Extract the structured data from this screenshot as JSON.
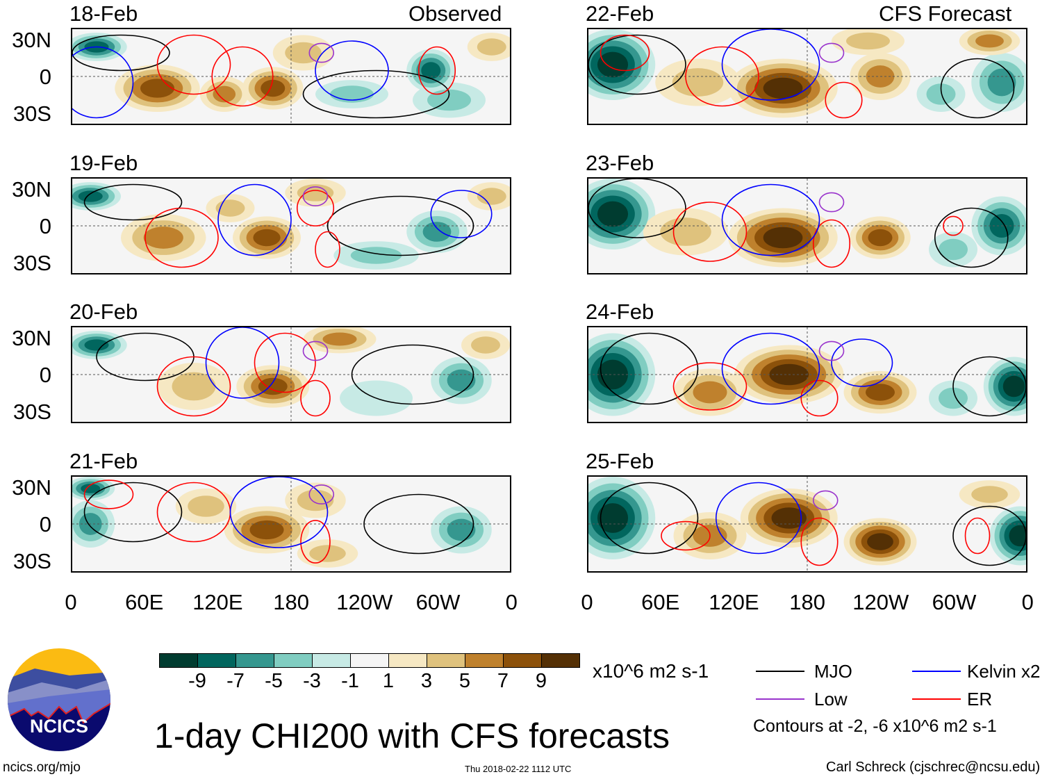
{
  "headers": {
    "observed": "Observed",
    "forecast": "CFS Forecast"
  },
  "lat_labels": [
    "30N",
    "0",
    "30S"
  ],
  "lon_labels": [
    "0",
    "60E",
    "120E",
    "180",
    "120W",
    "60W",
    "0"
  ],
  "colorbar": {
    "colors": [
      "#003c30",
      "#01665e",
      "#35978f",
      "#80cdc1",
      "#c7eae5",
      "#f5f5f5",
      "#f6e8c3",
      "#dfc27d",
      "#bf812d",
      "#8c510a",
      "#543005"
    ],
    "labels": [
      "-9",
      "-7",
      "-5",
      "-3",
      "-1",
      "1",
      "3",
      "5",
      "7",
      "9"
    ],
    "units": "x10^6 m2 s-1"
  },
  "legend": {
    "items": [
      {
        "label": "MJO",
        "color": "#000000"
      },
      {
        "label": "Kelvin x2",
        "color": "#0000ff"
      },
      {
        "label": "Low",
        "color": "#9933cc"
      },
      {
        "label": "ER",
        "color": "#ff0000"
      }
    ],
    "contour_note": "Contours at -2, -6 x10^6 m2 s-1"
  },
  "title": "1-day CHI200 with CFS forecasts",
  "site": "ncics.org/mjo",
  "logo_text": "NCICS",
  "timestamp": "Thu 2018-02-22 1112 UTC",
  "author": "Carl Schreck (cjschrec@ncsu.edu)",
  "chart_data": {
    "type": "heatmap",
    "variable": "CHI200 anomaly",
    "xlim": [
      0,
      360
    ],
    "ylim": [
      -40,
      40
    ],
    "panels": [
      {
        "date": "18-Feb",
        "kind": "observed",
        "features": [
          [
            20,
            25,
            25,
            12,
            -7
          ],
          [
            70,
            -10,
            35,
            20,
            7
          ],
          [
            125,
            -15,
            20,
            15,
            5
          ],
          [
            165,
            -10,
            25,
            18,
            7
          ],
          [
            190,
            20,
            25,
            15,
            3
          ],
          [
            295,
            5,
            20,
            18,
            -7
          ],
          [
            310,
            -20,
            30,
            15,
            -3
          ],
          [
            230,
            -15,
            30,
            12,
            -3
          ],
          [
            345,
            25,
            20,
            12,
            3
          ]
        ],
        "contours": [
          [
            40,
            20,
            40,
            15,
            "mjo"
          ],
          [
            250,
            -15,
            60,
            20,
            "mjo"
          ],
          [
            140,
            0,
            25,
            25,
            "er"
          ],
          [
            100,
            10,
            30,
            25,
            "er"
          ],
          [
            300,
            5,
            15,
            20,
            "er"
          ],
          [
            230,
            5,
            30,
            25,
            "kelvin"
          ],
          [
            20,
            -5,
            30,
            30,
            "kelvin"
          ],
          [
            205,
            20,
            10,
            8,
            "low"
          ]
        ]
      },
      {
        "date": "19-Feb",
        "kind": "observed",
        "features": [
          [
            15,
            25,
            25,
            12,
            -7
          ],
          [
            75,
            -10,
            35,
            20,
            5
          ],
          [
            160,
            -10,
            28,
            18,
            7
          ],
          [
            130,
            15,
            20,
            12,
            3
          ],
          [
            300,
            -5,
            25,
            18,
            -5
          ],
          [
            250,
            -25,
            35,
            12,
            -3
          ],
          [
            200,
            28,
            25,
            12,
            3
          ],
          [
            345,
            25,
            20,
            12,
            3
          ]
        ],
        "contours": [
          [
            50,
            20,
            40,
            15,
            "mjo"
          ],
          [
            270,
            0,
            60,
            25,
            "mjo"
          ],
          [
            90,
            -10,
            30,
            25,
            "er"
          ],
          [
            200,
            15,
            15,
            15,
            "er"
          ],
          [
            210,
            -20,
            10,
            15,
            "er"
          ],
          [
            150,
            5,
            30,
            30,
            "kelvin"
          ],
          [
            320,
            10,
            25,
            20,
            "kelvin"
          ],
          [
            200,
            25,
            10,
            8,
            "low"
          ]
        ]
      },
      {
        "date": "20-Feb",
        "kind": "observed",
        "features": [
          [
            20,
            25,
            25,
            12,
            -7
          ],
          [
            100,
            -10,
            30,
            20,
            3
          ],
          [
            165,
            -10,
            30,
            18,
            7
          ],
          [
            220,
            30,
            30,
            12,
            5
          ],
          [
            320,
            -5,
            25,
            20,
            -5
          ],
          [
            340,
            25,
            20,
            12,
            3
          ],
          [
            250,
            -20,
            30,
            15,
            -1
          ]
        ],
        "contours": [
          [
            60,
            15,
            40,
            20,
            "mjo"
          ],
          [
            280,
            0,
            50,
            25,
            "mjo"
          ],
          [
            100,
            -10,
            30,
            25,
            "er"
          ],
          [
            175,
            10,
            25,
            25,
            "er"
          ],
          [
            200,
            -20,
            12,
            15,
            "er"
          ],
          [
            140,
            10,
            30,
            30,
            "kelvin"
          ],
          [
            200,
            20,
            10,
            8,
            "low"
          ]
        ]
      },
      {
        "date": "21-Feb",
        "kind": "observed",
        "features": [
          [
            15,
            0,
            20,
            20,
            -5
          ],
          [
            15,
            30,
            20,
            10,
            -7
          ],
          [
            160,
            -5,
            35,
            20,
            7
          ],
          [
            110,
            15,
            25,
            15,
            3
          ],
          [
            200,
            20,
            25,
            15,
            3
          ],
          [
            320,
            -5,
            25,
            20,
            -5
          ],
          [
            210,
            -25,
            25,
            12,
            3
          ]
        ],
        "contours": [
          [
            50,
            10,
            40,
            25,
            "mjo"
          ],
          [
            285,
            0,
            45,
            25,
            "mjo"
          ],
          [
            100,
            10,
            30,
            25,
            "er"
          ],
          [
            200,
            -15,
            12,
            18,
            "er"
          ],
          [
            30,
            25,
            20,
            12,
            "er"
          ],
          [
            170,
            10,
            40,
            30,
            "kelvin"
          ],
          [
            205,
            25,
            10,
            8,
            "low"
          ]
        ]
      },
      {
        "date": "22-Feb",
        "kind": "forecast",
        "features": [
          [
            20,
            10,
            35,
            30,
            -9
          ],
          [
            160,
            -10,
            45,
            25,
            9
          ],
          [
            240,
            0,
            25,
            20,
            5
          ],
          [
            230,
            30,
            30,
            12,
            3
          ],
          [
            340,
            -5,
            25,
            25,
            -5
          ],
          [
            290,
            -15,
            20,
            15,
            -3
          ],
          [
            330,
            30,
            25,
            12,
            5
          ],
          [
            90,
            -5,
            35,
            20,
            3
          ]
        ],
        "contours": [
          [
            40,
            10,
            40,
            25,
            "mjo"
          ],
          [
            320,
            -10,
            30,
            25,
            "mjo"
          ],
          [
            110,
            0,
            30,
            25,
            "er"
          ],
          [
            210,
            -20,
            15,
            15,
            "er"
          ],
          [
            30,
            20,
            20,
            15,
            "er"
          ],
          [
            150,
            10,
            40,
            30,
            "kelvin"
          ],
          [
            200,
            20,
            10,
            8,
            "low"
          ]
        ]
      },
      {
        "date": "23-Feb",
        "kind": "forecast",
        "features": [
          [
            20,
            10,
            35,
            30,
            -9
          ],
          [
            160,
            -10,
            45,
            25,
            9
          ],
          [
            240,
            -10,
            25,
            18,
            7
          ],
          [
            340,
            0,
            25,
            25,
            -7
          ],
          [
            300,
            -20,
            20,
            15,
            -3
          ],
          [
            80,
            -5,
            35,
            20,
            3
          ]
        ],
        "contours": [
          [
            40,
            15,
            40,
            25,
            "mjo"
          ],
          [
            315,
            -10,
            30,
            25,
            "mjo"
          ],
          [
            100,
            -5,
            30,
            25,
            "er"
          ],
          [
            200,
            -15,
            15,
            20,
            "er"
          ],
          [
            300,
            0,
            8,
            8,
            "er"
          ],
          [
            150,
            5,
            40,
            30,
            "kelvin"
          ],
          [
            200,
            20,
            10,
            8,
            "low"
          ]
        ]
      },
      {
        "date": "24-Feb",
        "kind": "forecast",
        "features": [
          [
            20,
            0,
            35,
            35,
            -9
          ],
          [
            165,
            0,
            45,
            25,
            9
          ],
          [
            240,
            -15,
            30,
            18,
            7
          ],
          [
            100,
            -15,
            30,
            20,
            5
          ],
          [
            350,
            -10,
            25,
            25,
            -9
          ],
          [
            300,
            -20,
            20,
            15,
            -3
          ]
        ],
        "contours": [
          [
            50,
            5,
            40,
            30,
            "mjo"
          ],
          [
            330,
            -10,
            30,
            25,
            "mjo"
          ],
          [
            100,
            -10,
            30,
            20,
            "er"
          ],
          [
            190,
            -20,
            15,
            15,
            "er"
          ],
          [
            150,
            5,
            40,
            30,
            "kelvin"
          ],
          [
            225,
            10,
            25,
            20,
            "kelvin"
          ],
          [
            200,
            20,
            10,
            8,
            "low"
          ]
        ]
      },
      {
        "date": "25-Feb",
        "kind": "forecast",
        "features": [
          [
            20,
            5,
            35,
            35,
            -9
          ],
          [
            165,
            5,
            40,
            25,
            9
          ],
          [
            240,
            -15,
            30,
            20,
            9
          ],
          [
            100,
            -10,
            30,
            20,
            5
          ],
          [
            355,
            -10,
            25,
            25,
            -9
          ],
          [
            330,
            25,
            25,
            12,
            3
          ]
        ],
        "contours": [
          [
            50,
            5,
            40,
            30,
            "mjo"
          ],
          [
            330,
            -10,
            30,
            25,
            "mjo"
          ],
          [
            80,
            -10,
            20,
            12,
            "er"
          ],
          [
            190,
            -15,
            15,
            20,
            "er"
          ],
          [
            320,
            -10,
            10,
            15,
            "er"
          ],
          [
            140,
            5,
            35,
            30,
            "kelvin"
          ],
          [
            195,
            20,
            10,
            8,
            "low"
          ]
        ]
      }
    ]
  }
}
